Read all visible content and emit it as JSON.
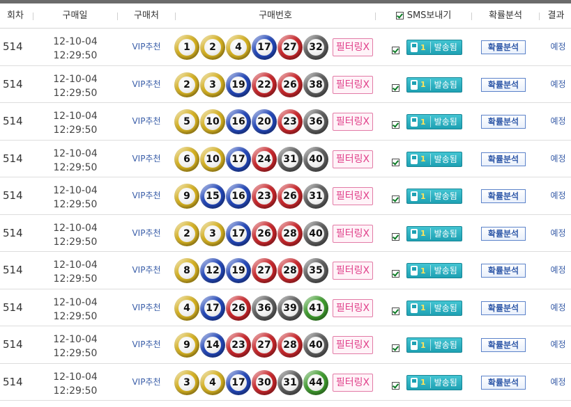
{
  "header": {
    "round": "회차",
    "date": "구매일",
    "store": "구매처",
    "numbers": "구매번호",
    "sms": "SMS보내기",
    "prob": "확률분석",
    "result": "결과"
  },
  "ball_colors": {
    "yellow": "#d4b021",
    "blue": "#2347b8",
    "red": "#c8262b",
    "gray": "#5c5c5c",
    "green": "#3f9b2e"
  },
  "rows": [
    {
      "round": "514",
      "date": "12-10-04",
      "time": "12:29:50",
      "store": "VIP추천",
      "numbers": [
        "1",
        "2",
        "4",
        "17",
        "27",
        "32"
      ],
      "filter": "필터링X",
      "sms_count": "1",
      "sms_label": "발송됨",
      "prob": "확률분석",
      "result": "예정"
    },
    {
      "round": "514",
      "date": "12-10-04",
      "time": "12:29:50",
      "store": "VIP추천",
      "numbers": [
        "2",
        "3",
        "19",
        "22",
        "26",
        "38"
      ],
      "filter": "필터링X",
      "sms_count": "1",
      "sms_label": "발송됨",
      "prob": "확률분석",
      "result": "예정"
    },
    {
      "round": "514",
      "date": "12-10-04",
      "time": "12:29:50",
      "store": "VIP추천",
      "numbers": [
        "5",
        "10",
        "16",
        "20",
        "23",
        "36"
      ],
      "filter": "필터링X",
      "sms_count": "1",
      "sms_label": "발송됨",
      "prob": "확률분석",
      "result": "예정"
    },
    {
      "round": "514",
      "date": "12-10-04",
      "time": "12:29:50",
      "store": "VIP추천",
      "numbers": [
        "6",
        "10",
        "17",
        "24",
        "31",
        "40"
      ],
      "filter": "필터링X",
      "sms_count": "1",
      "sms_label": "발송됨",
      "prob": "확률분석",
      "result": "예정"
    },
    {
      "round": "514",
      "date": "12-10-04",
      "time": "12:29:50",
      "store": "VIP추천",
      "numbers": [
        "9",
        "15",
        "16",
        "23",
        "26",
        "31"
      ],
      "filter": "필터링X",
      "sms_count": "1",
      "sms_label": "발송됨",
      "prob": "확률분석",
      "result": "예정"
    },
    {
      "round": "514",
      "date": "12-10-04",
      "time": "12:29:50",
      "store": "VIP추천",
      "numbers": [
        "2",
        "3",
        "17",
        "26",
        "28",
        "40"
      ],
      "filter": "필터링X",
      "sms_count": "1",
      "sms_label": "발송됨",
      "prob": "확률분석",
      "result": "예정"
    },
    {
      "round": "514",
      "date": "12-10-04",
      "time": "12:29:50",
      "store": "VIP추천",
      "numbers": [
        "8",
        "12",
        "19",
        "27",
        "28",
        "35"
      ],
      "filter": "필터링X",
      "sms_count": "1",
      "sms_label": "발송됨",
      "prob": "확률분석",
      "result": "예정"
    },
    {
      "round": "514",
      "date": "12-10-04",
      "time": "12:29:50",
      "store": "VIP추천",
      "numbers": [
        "4",
        "17",
        "26",
        "36",
        "39",
        "41"
      ],
      "filter": "필터링X",
      "sms_count": "1",
      "sms_label": "발송됨",
      "prob": "확률분석",
      "result": "예정"
    },
    {
      "round": "514",
      "date": "12-10-04",
      "time": "12:29:50",
      "store": "VIP추천",
      "numbers": [
        "9",
        "14",
        "23",
        "27",
        "28",
        "40"
      ],
      "filter": "필터링X",
      "sms_count": "1",
      "sms_label": "발송됨",
      "prob": "확률분석",
      "result": "예정"
    },
    {
      "round": "514",
      "date": "12-10-04",
      "time": "12:29:50",
      "store": "VIP추천",
      "numbers": [
        "3",
        "4",
        "17",
        "30",
        "31",
        "44"
      ],
      "filter": "필터링X",
      "sms_count": "1",
      "sms_label": "발송됨",
      "prob": "확률분석",
      "result": "예정"
    }
  ]
}
